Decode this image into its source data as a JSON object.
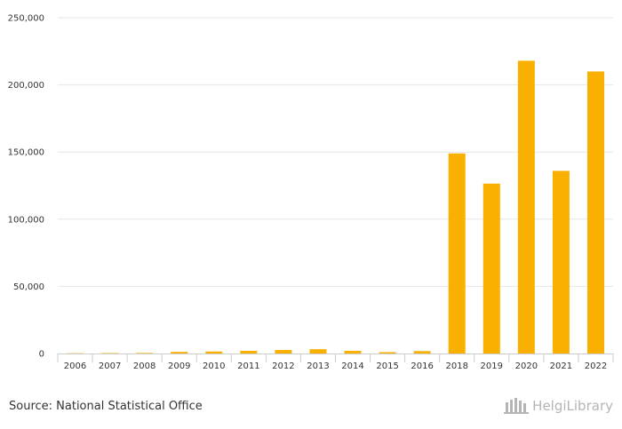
{
  "chart_data": {
    "type": "bar",
    "categories": [
      "2006",
      "2007",
      "2008",
      "2009",
      "2010",
      "2011",
      "2012",
      "2013",
      "2014",
      "2015",
      "2016",
      "2018",
      "2019",
      "2020",
      "2021",
      "2022"
    ],
    "values": [
      200,
      300,
      400,
      1200,
      1500,
      2000,
      2600,
      3200,
      2000,
      1000,
      1800,
      149000,
      126500,
      218000,
      136000,
      210000
    ],
    "ylim": [
      0,
      250000
    ],
    "yticks": [
      0,
      50000,
      100000,
      150000,
      200000,
      250000
    ],
    "ytick_labels": [
      "0",
      "50,000",
      "100,000",
      "150,000",
      "200,000",
      "250,000"
    ],
    "title": "",
    "xlabel": "",
    "ylabel": "",
    "grid": true,
    "bar_color": "#f9b000",
    "grid_color": "#e6e6e6"
  },
  "footer": {
    "source": "Source: National Statistical Office",
    "brand": "HelgiLibrary"
  }
}
